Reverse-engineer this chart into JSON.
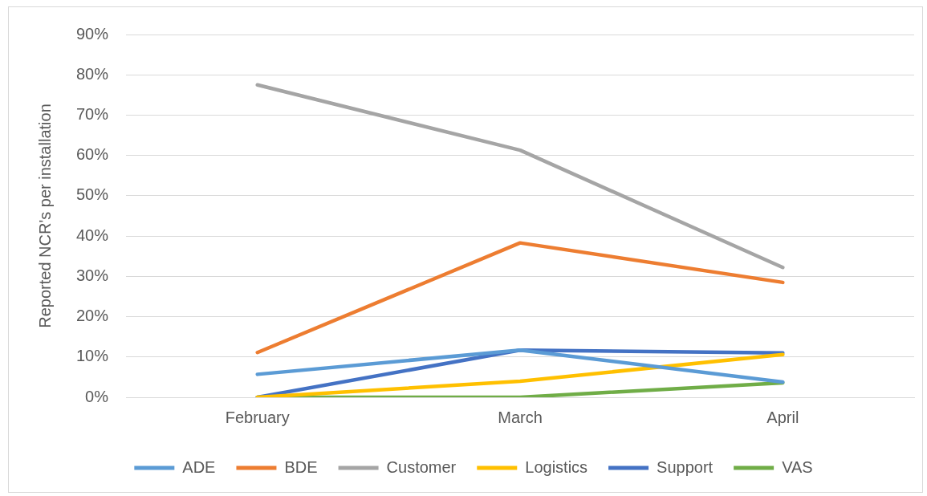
{
  "chart_data": {
    "type": "line",
    "ylabel": "Reported NCR's per installation",
    "categories": [
      "February",
      "March",
      "April"
    ],
    "series": [
      {
        "name": "ADE",
        "color": "#5b9bd5",
        "values": [
          5.7,
          11.7,
          3.8
        ]
      },
      {
        "name": "BDE",
        "color": "#ed7d31",
        "values": [
          11.1,
          38.3,
          28.5
        ]
      },
      {
        "name": "Customer",
        "color": "#a5a5a5",
        "values": [
          77.5,
          61.3,
          32.2
        ]
      },
      {
        "name": "Logistics",
        "color": "#ffc000",
        "values": [
          0,
          4.0,
          10.6
        ]
      },
      {
        "name": "Support",
        "color": "#4472c4",
        "values": [
          0,
          11.7,
          11.0
        ]
      },
      {
        "name": "VAS",
        "color": "#70ad47",
        "values": [
          0,
          0,
          3.6
        ]
      }
    ],
    "ylim": [
      0,
      90
    ],
    "yticks": [
      {
        "value": 0,
        "label": "0%"
      },
      {
        "value": 10,
        "label": "10%"
      },
      {
        "value": 20,
        "label": "20%"
      },
      {
        "value": 30,
        "label": "30%"
      },
      {
        "value": 40,
        "label": "40%"
      },
      {
        "value": 50,
        "label": "50%"
      },
      {
        "value": 60,
        "label": "60%"
      },
      {
        "value": 70,
        "label": "70%"
      },
      {
        "value": 80,
        "label": "80%"
      },
      {
        "value": 90,
        "label": "90%"
      }
    ],
    "grid": "y",
    "legend": "bottom",
    "marker": "none",
    "line_style": "solid"
  }
}
